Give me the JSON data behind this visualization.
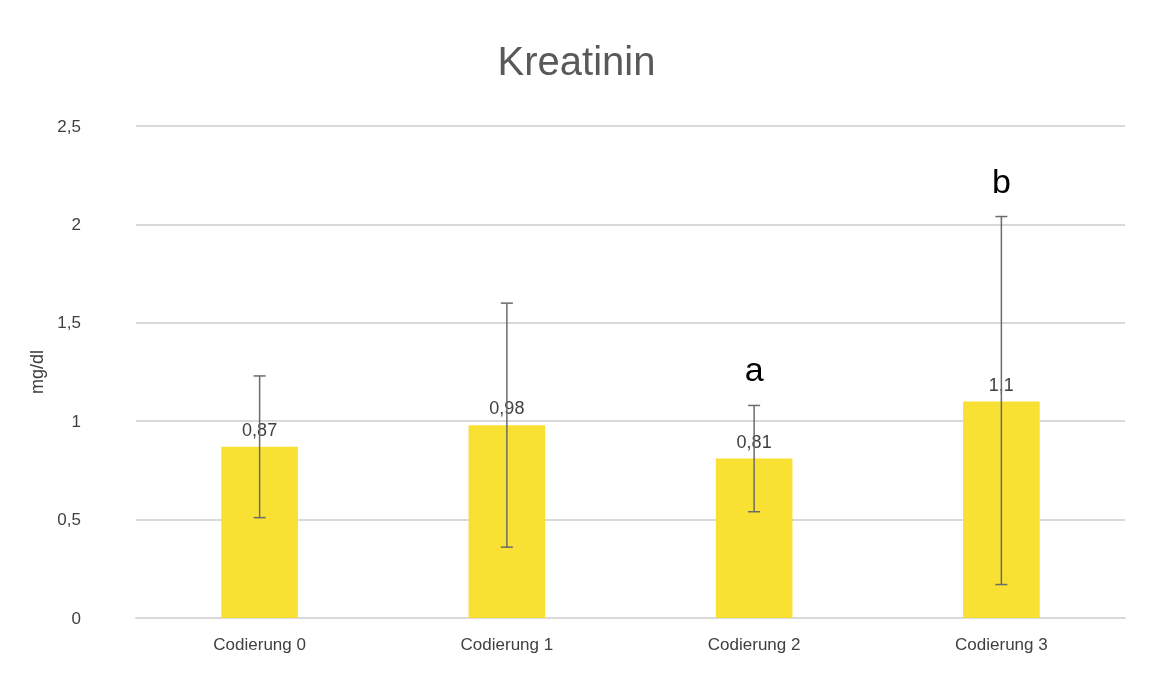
{
  "chart_data": {
    "type": "bar",
    "title": "Kreatinin",
    "ylabel": "mg/dl",
    "categories": [
      "Codierung 0",
      "Codierung 1",
      "Codierung 2",
      "Codierung 3"
    ],
    "values": [
      0.87,
      0.98,
      0.81,
      1.1
    ],
    "color": "#f8e133",
    "value_labels": [
      "0,87",
      "0,98",
      "0,81",
      "1,1"
    ],
    "errors": [
      [
        0.51,
        1.23
      ],
      [
        0.36,
        1.6
      ],
      [
        0.54,
        1.08
      ],
      [
        0.17,
        2.04
      ]
    ],
    "annotations": [
      "a",
      "b"
    ],
    "ylim": [
      0,
      2.5
    ],
    "yticks": [
      0,
      {
        "value": 0.5,
        "label": "0,5"
      },
      1,
      {
        "value": 1.5,
        "label": "1,5"
      },
      2,
      {
        "value": 2.5,
        "label": "2,5"
      }
    ],
    "grid": "y"
  }
}
